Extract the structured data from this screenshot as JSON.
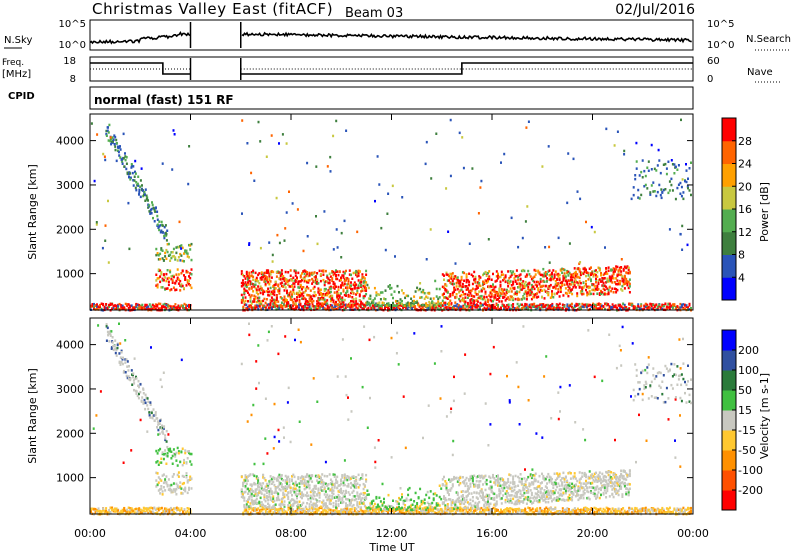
{
  "header": {
    "title": "Christmas Valley East (fitACF)",
    "beam": "Beam 03",
    "date": "02/Jul/2016"
  },
  "nsky_panel": {
    "left_label": "N.Sky",
    "right_label": "N.Search",
    "left_ticks": [
      "10^5",
      "10^0"
    ],
    "right_ticks": [
      "10^5",
      "10^0"
    ]
  },
  "freq_panel": {
    "left_label": "Freq.",
    "left_unit": "[MHz]",
    "right_label": "Nave",
    "left_ticks": [
      "18",
      "8"
    ],
    "right_ticks": [
      "60",
      "0"
    ]
  },
  "cpid": {
    "label": "CPID",
    "value": "normal (fast) 151 RF"
  },
  "x_axis": {
    "label": "Time UT",
    "ticks": [
      "00:00",
      "04:00",
      "08:00",
      "12:00",
      "16:00",
      "20:00",
      "00:00"
    ]
  },
  "chart_data": [
    {
      "type": "heatmap",
      "name": "power",
      "ylabel": "Slant Range [km]",
      "ylim": [
        180,
        4600
      ],
      "yticks": [
        "1000",
        "2000",
        "3000",
        "4000"
      ],
      "colorbar": {
        "label": "Power [dB]",
        "ticks": [
          "28",
          "24",
          "20",
          "16",
          "12",
          "8",
          "4"
        ],
        "colors": [
          "#0000ff",
          "#2a54b8",
          "#3e7f3e",
          "#53ad50",
          "#c8c840",
          "#ffa000",
          "#ff6400",
          "#ff0000"
        ]
      }
    },
    {
      "type": "heatmap",
      "name": "velocity",
      "ylabel": "Slant Range [km]",
      "ylim": [
        180,
        4600
      ],
      "yticks": [
        "1000",
        "2000",
        "3000",
        "4000"
      ],
      "colorbar": {
        "label": "Velocity [m s-1]",
        "ticks": [
          "200",
          "100",
          "50",
          "15",
          "-15",
          "-50",
          "-100",
          "-200"
        ],
        "colors": [
          "#ff0000",
          "#ff5000",
          "#ff9000",
          "#ffc830",
          "#c8c8c0",
          "#40c040",
          "#2a7a3a",
          "#3050a0",
          "#0000ff"
        ]
      }
    }
  ]
}
